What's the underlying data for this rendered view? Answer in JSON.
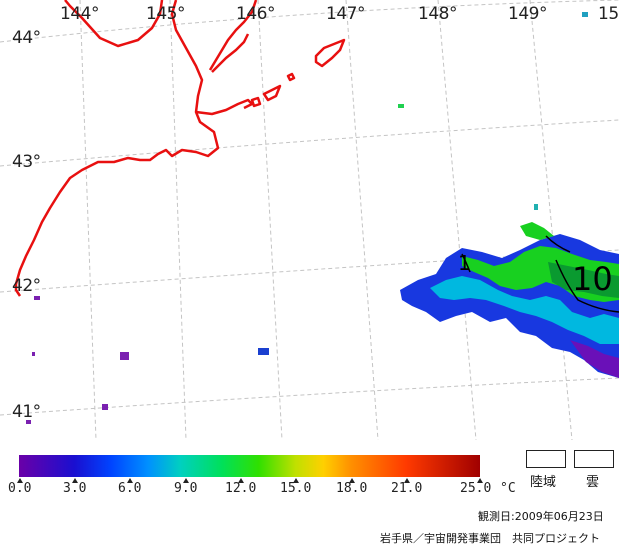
{
  "map": {
    "longitude_labels": [
      "144°",
      "145°",
      "146°",
      "147°",
      "148°",
      "149°",
      "15"
    ],
    "latitude_labels": [
      "44°",
      "43°",
      "42°",
      "41°"
    ],
    "isotherm_labels": [
      "1",
      "10"
    ],
    "colors": {
      "coastline": "#e81010",
      "graticule": "#bdbdbd"
    }
  },
  "colorbar": {
    "ticks": [
      "0.0",
      "3.0",
      "6.0",
      "9.0",
      "12.0",
      "15.0",
      "18.0",
      "21.0",
      "25.0"
    ],
    "unit": "°C",
    "range": [
      0.0,
      25.0
    ]
  },
  "legend": {
    "land_label": "陸域",
    "cloud_label": "雲"
  },
  "footer": {
    "observation_date": "観測日:2009年06月23日",
    "credit": "岩手県／宇宙開発事業団　共同プロジェクト"
  }
}
